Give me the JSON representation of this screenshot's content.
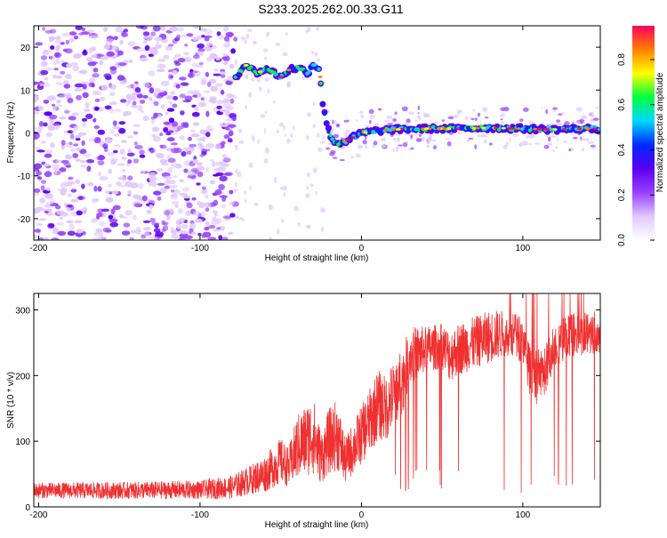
{
  "title": "S233.2025.262.00.33.G11",
  "chart_data": [
    {
      "type": "heatmap",
      "title": "S233.2025.262.00.33.G11",
      "xlabel": "Height of straight line (km)",
      "ylabel": "Frequency (Hz)",
      "xlim": [
        -203,
        148
      ],
      "ylim": [
        -25,
        25
      ],
      "x_ticks": [
        -200,
        -100,
        0,
        100
      ],
      "x_tick_labels": [
        "-200",
        "-100",
        "0",
        "100"
      ],
      "y_ticks": [
        -20,
        -10,
        0,
        10,
        20
      ],
      "y_tick_labels": [
        "-20",
        "-10",
        "0",
        "10",
        "20"
      ],
      "colorbar": {
        "label": "Normalized spectral amplitude",
        "range": [
          0,
          0.95
        ],
        "ticks": [
          0.0,
          0.2,
          0.4,
          0.6,
          0.8
        ],
        "tick_labels": [
          "0.0",
          "0.2",
          "0.4",
          "0.6",
          "0.8"
        ],
        "colors": [
          "#ffffff",
          "#e0c8ff",
          "#9a40ff",
          "#5a00f0",
          "#0028ff",
          "#00d8ff",
          "#00ff40",
          "#ffff00",
          "#ff8000",
          "#ff0060"
        ]
      },
      "signal_trace": {
        "x": [
          -78,
          -72,
          -65,
          -58,
          -50,
          -44,
          -38,
          -33,
          -30,
          -26,
          -24,
          -22,
          -20,
          -17,
          -14,
          -10,
          -5,
          0,
          10,
          20,
          40,
          60,
          80,
          100,
          120,
          140,
          148
        ],
        "y": [
          13,
          16,
          14,
          15,
          13,
          15,
          15,
          14,
          16,
          15,
          7,
          3,
          0,
          -2,
          -2.5,
          -2,
          -1,
          0,
          0.5,
          0.8,
          1,
          1,
          1.2,
          1,
          0.8,
          1,
          1
        ]
      },
      "noise_region_x": [
        -203,
        -78
      ]
    },
    {
      "type": "line",
      "xlabel": "Height of straight line (km)",
      "ylabel": "SNR (10 * v/v)",
      "xlim": [
        -203,
        148
      ],
      "ylim": [
        0,
        325
      ],
      "x_ticks": [
        -200,
        -100,
        0,
        100
      ],
      "x_tick_labels": [
        "-200",
        "-100",
        "0",
        "100"
      ],
      "y_ticks": [
        0,
        100,
        200,
        300
      ],
      "y_tick_labels": [
        "0",
        "100",
        "200",
        "300"
      ],
      "line_color": "#f03030",
      "envelope": {
        "x": [
          -203,
          -150,
          -100,
          -80,
          -70,
          -60,
          -50,
          -45,
          -40,
          -30,
          -25,
          -20,
          -15,
          -10,
          -5,
          0,
          5,
          10,
          15,
          20,
          25,
          30,
          40,
          50,
          55,
          60,
          70,
          80,
          90,
          100,
          105,
          110,
          115,
          120,
          130,
          140,
          148
        ],
        "mean": [
          25,
          25,
          26,
          30,
          40,
          50,
          70,
          60,
          90,
          110,
          75,
          100,
          110,
          70,
          90,
          110,
          130,
          155,
          150,
          170,
          190,
          230,
          240,
          245,
          230,
          240,
          250,
          260,
          265,
          255,
          200,
          195,
          215,
          250,
          260,
          265,
          270
        ],
        "spread": [
          12,
          13,
          14,
          18,
          22,
          28,
          35,
          30,
          50,
          60,
          40,
          50,
          55,
          35,
          40,
          45,
          50,
          55,
          50,
          55,
          50,
          45,
          35,
          35,
          40,
          40,
          40,
          40,
          35,
          35,
          40,
          45,
          40,
          35,
          35,
          35,
          35
        ]
      }
    }
  ]
}
